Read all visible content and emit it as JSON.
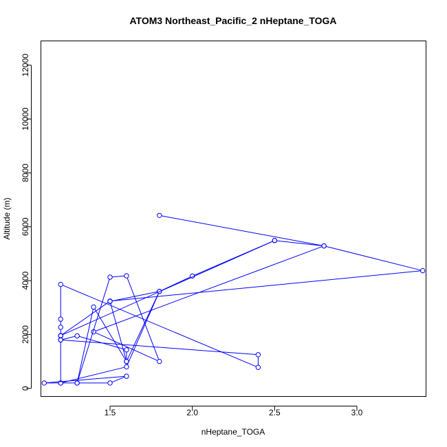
{
  "chart_data": {
    "type": "line",
    "title": "ATOM3 Northeast_Pacific_2 nHeptane_TOGA",
    "xlabel": "nHeptane_TOGA",
    "ylabel": "Altitude (m)",
    "xlim": [
      1.08,
      3.42
    ],
    "ylim": [
      -300,
      12900
    ],
    "xticks": [
      1.5,
      2.0,
      2.5,
      3.0
    ],
    "xtick_labels": [
      "1.5",
      "2.0",
      "2.5",
      "3.0"
    ],
    "yticks": [
      0,
      2000,
      4000,
      6000,
      8000,
      10000,
      12000
    ],
    "ytick_labels": [
      "0",
      "2000",
      "4000",
      "6000",
      "8000",
      "10000",
      "12000"
    ],
    "grid": false,
    "legend": "none",
    "color": "#0000ff",
    "series": [
      {
        "x": [
          1.8,
          2.8,
          3.4,
          1.5,
          1.2,
          2.5,
          2.8,
          1.4,
          1.8,
          1.6,
          1.5,
          1.3,
          1.2,
          1.2,
          1.2,
          1.2,
          1.2,
          1.2,
          2.4,
          2.4,
          1.2,
          1.3,
          1.6,
          1.6,
          1.4,
          1.3,
          1.5,
          1.6,
          1.1,
          1.2,
          1.6,
          1.8,
          1.5,
          1.6,
          1.8,
          2.0,
          2.5
        ],
        "y": [
          6420,
          5290,
          4370,
          3240,
          1960,
          5490,
          5290,
          2100,
          1000,
          4180,
          4130,
          200,
          200,
          1800,
          1950,
          2270,
          2570,
          3860,
          780,
          1250,
          1800,
          1950,
          1430,
          1000,
          3020,
          200,
          200,
          450,
          200,
          200,
          800,
          3600,
          3230,
          1000,
          3600,
          4170,
          5490
        ]
      }
    ]
  }
}
